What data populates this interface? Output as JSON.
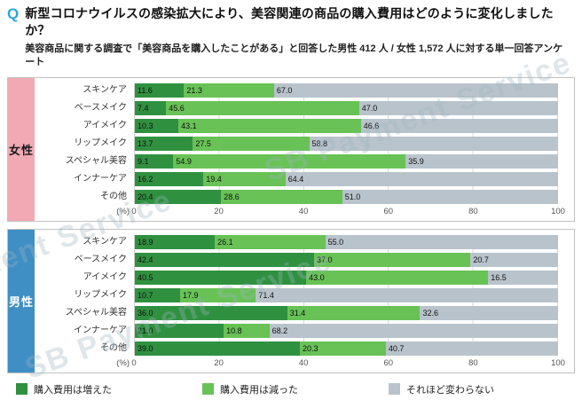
{
  "header": {
    "q": "Q",
    "title": "新型コロナウイルスの感染拡大により、美容関連の商品の購入費用はどのように変化しましたか？",
    "subtitle": "美容商品に関する調査で「美容商品を購入したことがある」と回答した男性 412 人 / 女性 1,572 人に対する単一回答アンケート"
  },
  "watermark": "SB Payment Service",
  "legend": [
    {
      "label": "購入費用は増えた",
      "color": "#2f9140"
    },
    {
      "label": "購入費用は減った",
      "color": "#68c256"
    },
    {
      "label": "それほど変わらない",
      "color": "#b9c3cb"
    }
  ],
  "chart_data": {
    "type": "bar",
    "orientation": "horizontal-stacked",
    "x_unit": "(%)",
    "xlim": [
      0,
      100
    ],
    "ticks": [
      0,
      20,
      40,
      60,
      80,
      100
    ],
    "grid": true,
    "legend_position": "bottom",
    "categories": [
      "スキンケア",
      "ベースメイク",
      "アイメイク",
      "リップメイク",
      "スペシャル美容",
      "インナーケア",
      "その他"
    ],
    "groups": [
      {
        "label": "女性",
        "side_color": "#f2a9b4",
        "label_text_color": "#1a1a1a",
        "series": [
          {
            "name": "購入費用は増えた",
            "values": [
              11.6,
              7.4,
              10.3,
              13.7,
              9.1,
              16.2,
              20.4
            ]
          },
          {
            "name": "購入費用は減った",
            "values": [
              21.3,
              45.6,
              43.1,
              27.5,
              54.9,
              19.4,
              28.6
            ]
          },
          {
            "name": "それほど変わらない",
            "values": [
              67.0,
              47.0,
              46.6,
              58.8,
              35.9,
              64.4,
              51.0
            ]
          }
        ]
      },
      {
        "label": "男性",
        "side_color": "#3f8fc5",
        "label_text_color": "#ffffff",
        "series": [
          {
            "name": "購入費用は増えた",
            "values": [
              18.9,
              42.4,
              40.5,
              10.7,
              36.0,
              21.0,
              39.0
            ]
          },
          {
            "name": "購入費用は減った",
            "values": [
              26.1,
              37.0,
              43.0,
              17.9,
              31.4,
              10.8,
              20.3
            ]
          },
          {
            "name": "それほど変わらない",
            "values": [
              55.0,
              20.7,
              16.5,
              71.4,
              32.6,
              68.2,
              40.7
            ]
          }
        ]
      }
    ]
  }
}
